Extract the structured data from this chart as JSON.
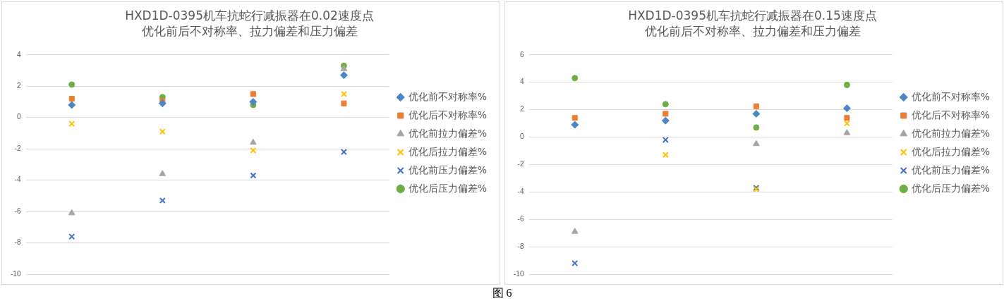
{
  "chart_data": [
    {
      "type": "scatter",
      "title": "HXD1D-0395机车抗蛇行减振器在0.02速度点",
      "subtitle": "优化前后不对称率、拉力偏差和压力偏差",
      "categories": [
        null,
        null,
        null,
        null
      ],
      "series": [
        {
          "name": "优化前不对称率%",
          "color": "#4a86c8",
          "marker": "diamond",
          "values": [
            0.8,
            0.9,
            1.0,
            2.7
          ]
        },
        {
          "name": "优化后不对称率%",
          "color": "#ed7d31",
          "marker": "square",
          "values": [
            1.2,
            1.05,
            1.5,
            0.9
          ]
        },
        {
          "name": "优化前拉力偏差%",
          "color": "#a5a5a5",
          "marker": "triangle",
          "values": [
            -6.1,
            -3.6,
            -1.6,
            3.1
          ]
        },
        {
          "name": "优化后拉力偏差%",
          "color": "#ffc000",
          "marker": "cross",
          "values": [
            -0.4,
            -0.9,
            -2.1,
            1.5
          ]
        },
        {
          "name": "优化前压力偏差%",
          "color": "#4472c4",
          "marker": "cross",
          "values": [
            -7.6,
            -5.3,
            -3.7,
            -2.2
          ]
        },
        {
          "name": "优化后压力偏差%",
          "color": "#70ad47",
          "marker": "circle",
          "values": [
            2.1,
            1.3,
            0.8,
            3.3
          ]
        }
      ],
      "ylim": [
        -10,
        4
      ],
      "yticks": [
        -10,
        -8,
        -6,
        -4,
        -2,
        0,
        2,
        4
      ],
      "grid": "y",
      "legend": "right",
      "tick_labels": "y",
      "annotations": [
        "图 6"
      ]
    },
    {
      "type": "scatter",
      "title": "HXD1D-0395机车抗蛇行减振器在0.15速度点",
      "subtitle": "优化前后不对称率、拉力偏差和压力偏差",
      "categories": [
        null,
        null,
        null,
        null
      ],
      "series": [
        {
          "name": "优化前不对称率%",
          "color": "#4a86c8",
          "marker": "diamond",
          "values": [
            0.9,
            1.2,
            1.7,
            2.1
          ]
        },
        {
          "name": "优化后不对称率%",
          "color": "#ed7d31",
          "marker": "square",
          "values": [
            1.4,
            1.7,
            2.25,
            1.4
          ]
        },
        {
          "name": "优化前拉力偏差%",
          "color": "#a5a5a5",
          "marker": "triangle",
          "values": [
            -6.9,
            null,
            -0.5,
            0.3
          ]
        },
        {
          "name": "优化后拉力偏差%",
          "color": "#ffc000",
          "marker": "cross",
          "values": [
            null,
            -1.3,
            -3.8,
            1.0
          ]
        },
        {
          "name": "优化前压力偏差%",
          "color": "#4472c4",
          "marker": "cross",
          "values": [
            -9.2,
            -0.2,
            -3.7,
            null
          ]
        },
        {
          "name": "优化后压力偏差%",
          "color": "#70ad47",
          "marker": "circle",
          "values": [
            4.3,
            2.4,
            0.7,
            3.8
          ]
        }
      ],
      "ylim": [
        -10,
        6
      ],
      "yticks": [
        -10,
        -8,
        -6,
        -4,
        -2,
        0,
        2,
        4,
        6
      ],
      "grid": "y",
      "legend": "right",
      "tick_labels": "y"
    }
  ]
}
